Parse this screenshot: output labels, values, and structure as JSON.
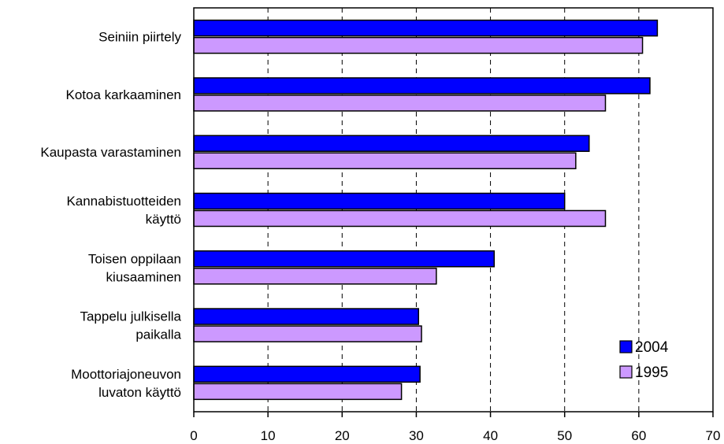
{
  "chart_data": {
    "type": "bar",
    "orientation": "horizontal",
    "title": "",
    "xlabel": "",
    "ylabel": "",
    "categories": [
      [
        "Seiniin piirtely"
      ],
      [
        "Kotoa karkaaminen"
      ],
      [
        "Kaupasta varastaminen"
      ],
      [
        "Kannabistuotteiden",
        "käyttö"
      ],
      [
        "Toisen oppilaan",
        "kiusaaminen"
      ],
      [
        "Tappelu julkisella",
        "paikalla"
      ],
      [
        "Moottoriajoneuvon",
        "luvaton käyttö"
      ]
    ],
    "series": [
      {
        "name": "2004",
        "color": "#0000ff",
        "values": [
          62.5,
          61.5,
          53.3,
          50.0,
          40.5,
          30.3,
          30.5
        ]
      },
      {
        "name": "1995",
        "color": "#cc99ff",
        "values": [
          60.5,
          55.5,
          51.5,
          55.5,
          32.7,
          30.7,
          28.0
        ]
      }
    ],
    "xlim": [
      0,
      70
    ],
    "xticks": [
      0,
      10,
      20,
      30,
      40,
      50,
      60,
      70
    ],
    "grid": {
      "x": true,
      "style": "dashed"
    },
    "legend": {
      "position": "bottom-right"
    }
  }
}
